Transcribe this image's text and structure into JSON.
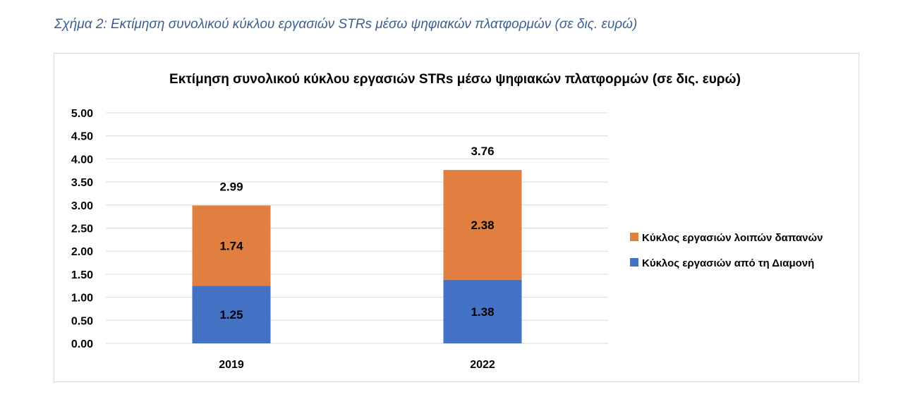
{
  "caption": "Σχήμα 2: Εκτίμηση συνολικού κύκλου εργασιών STRs μέσω ψηφιακών πλατφορμών (σε δις. ευρώ)",
  "chart_data": {
    "type": "bar",
    "stacked": true,
    "title": "Εκτίμηση συνολικού κύκλου εργασιών STRs μέσω ψηφιακών πλατφορμών (σε δις. ευρώ)",
    "categories": [
      "2019",
      "2022"
    ],
    "series": [
      {
        "name": "Κύκλος εργασιών από τη Διαμονή",
        "values": [
          1.25,
          1.38
        ],
        "color": "#4472c4",
        "labels": [
          "1.25",
          "1.38"
        ]
      },
      {
        "name": "Κύκλος εργασιών λοιπών δαπανών",
        "values": [
          1.74,
          2.38
        ],
        "color": "#e07f3f",
        "labels": [
          "1.74",
          "2.38"
        ]
      }
    ],
    "totals": [
      "2.99",
      "3.76"
    ],
    "ylim": [
      0,
      5
    ],
    "ytick_step": 0.5,
    "ytick_labels": [
      "0.00",
      "0.50",
      "1.00",
      "1.50",
      "2.00",
      "2.50",
      "3.00",
      "3.50",
      "4.00",
      "4.50",
      "5.00"
    ],
    "grid": true,
    "gridline_color": "#d9d9d9",
    "legend_order": [
      "Κύκλος εργασιών λοιπών δαπανών",
      "Κύκλος εργασιών από τη Διαμονή"
    ],
    "legend_position": "right",
    "xlabel": "",
    "ylabel": ""
  }
}
